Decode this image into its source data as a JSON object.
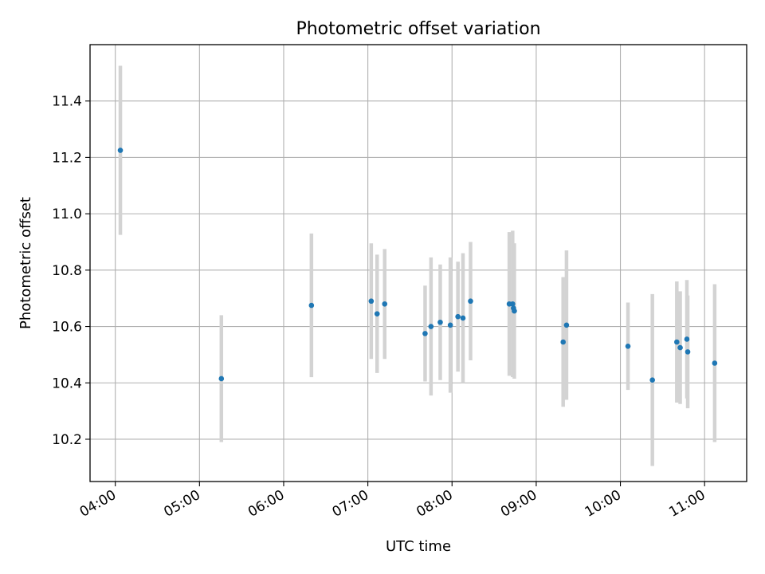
{
  "chart_data": {
    "type": "scatter",
    "title": "Photometric offset variation",
    "xlabel": "UTC time",
    "ylabel": "Photometric offset",
    "x_unit": "hours UTC",
    "xlim": [
      3.7,
      11.5
    ],
    "ylim": [
      10.05,
      11.6
    ],
    "x_ticks": [
      {
        "value": 4,
        "label": "04:00"
      },
      {
        "value": 5,
        "label": "05:00"
      },
      {
        "value": 6,
        "label": "06:00"
      },
      {
        "value": 7,
        "label": "07:00"
      },
      {
        "value": 8,
        "label": "08:00"
      },
      {
        "value": 9,
        "label": "09:00"
      },
      {
        "value": 10,
        "label": "10:00"
      },
      {
        "value": 11,
        "label": "11:00"
      }
    ],
    "y_ticks": [
      {
        "value": 10.2,
        "label": "10.2"
      },
      {
        "value": 10.4,
        "label": "10.4"
      },
      {
        "value": 10.6,
        "label": "10.6"
      },
      {
        "value": 10.8,
        "label": "10.8"
      },
      {
        "value": 11.0,
        "label": "11.0"
      },
      {
        "value": 11.2,
        "label": "11.2"
      },
      {
        "value": 11.4,
        "label": "11.4"
      }
    ],
    "grid": true,
    "marker_color": "#1f77b4",
    "errorbar_color": "#d3d3d3",
    "points": [
      {
        "x": 4.06,
        "y": 11.225,
        "err": 0.3
      },
      {
        "x": 5.26,
        "y": 10.415,
        "err": 0.225
      },
      {
        "x": 6.33,
        "y": 10.675,
        "err": 0.255
      },
      {
        "x": 7.04,
        "y": 10.69,
        "err": 0.205
      },
      {
        "x": 7.11,
        "y": 10.645,
        "err": 0.21
      },
      {
        "x": 7.2,
        "y": 10.68,
        "err": 0.195
      },
      {
        "x": 7.68,
        "y": 10.575,
        "err": 0.17
      },
      {
        "x": 7.75,
        "y": 10.6,
        "err": 0.245
      },
      {
        "x": 7.86,
        "y": 10.615,
        "err": 0.205
      },
      {
        "x": 7.98,
        "y": 10.605,
        "err": 0.24
      },
      {
        "x": 8.07,
        "y": 10.635,
        "err": 0.195
      },
      {
        "x": 8.13,
        "y": 10.63,
        "err": 0.23
      },
      {
        "x": 8.22,
        "y": 10.69,
        "err": 0.21
      },
      {
        "x": 8.68,
        "y": 10.68,
        "err": 0.255
      },
      {
        "x": 8.72,
        "y": 10.68,
        "err": 0.26
      },
      {
        "x": 8.73,
        "y": 10.665,
        "err": 0.23
      },
      {
        "x": 8.74,
        "y": 10.655,
        "err": 0.24
      },
      {
        "x": 9.32,
        "y": 10.545,
        "err": 0.23
      },
      {
        "x": 9.36,
        "y": 10.605,
        "err": 0.265
      },
      {
        "x": 10.09,
        "y": 10.53,
        "err": 0.155
      },
      {
        "x": 10.38,
        "y": 10.41,
        "err": 0.305
      },
      {
        "x": 10.67,
        "y": 10.545,
        "err": 0.215
      },
      {
        "x": 10.71,
        "y": 10.525,
        "err": 0.2
      },
      {
        "x": 10.79,
        "y": 10.555,
        "err": 0.21
      },
      {
        "x": 10.8,
        "y": 10.51,
        "err": 0.2
      },
      {
        "x": 11.12,
        "y": 10.47,
        "err": 0.28
      }
    ]
  }
}
